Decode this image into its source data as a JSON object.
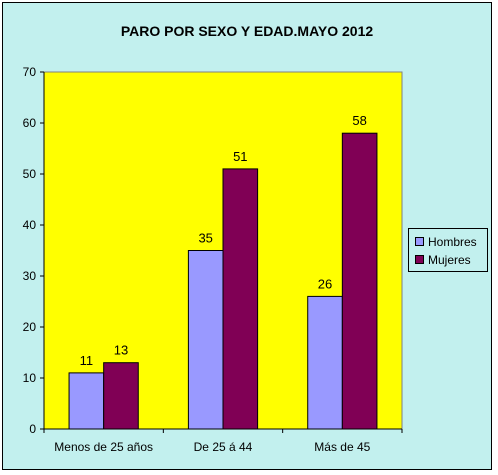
{
  "chart_data": {
    "type": "bar",
    "title": "PARO POR SEXO Y EDAD.MAYO 2012",
    "categories": [
      "Menos de 25 años",
      "De 25 á 44",
      "Más de 45"
    ],
    "series": [
      {
        "name": "Hombres",
        "values": [
          11,
          35,
          26
        ],
        "color": "#9999ff"
      },
      {
        "name": "Mujeres",
        "values": [
          13,
          51,
          58
        ],
        "color": "#800055"
      }
    ],
    "ylim": [
      0,
      70
    ],
    "yticks": [
      0,
      10,
      20,
      30,
      40,
      50,
      60,
      70
    ],
    "xlabel": "",
    "ylabel": "",
    "grid": false,
    "legend_position": "right",
    "plot_background": "#ffff00",
    "chart_background": "#c2f0ee"
  }
}
